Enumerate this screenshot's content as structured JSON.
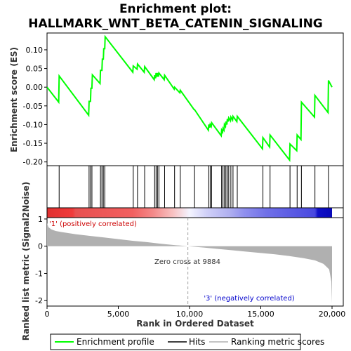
{
  "chart_data": {
    "type": "line",
    "title_lines": [
      "Enrichment plot:",
      "HALLMARK_WNT_BETA_CATENIN_SIGNALING"
    ],
    "xlabel": "Rank in Ordered Dataset",
    "ylabel_top": "Enrichment score (ES)",
    "ylabel_bottom": "Ranked list metric (Signal2Noise)",
    "xlim": [
      0,
      20000
    ],
    "x_ticks": [
      0,
      5000,
      10000,
      15000,
      20000
    ],
    "x_tick_labels": [
      "0",
      "5,000",
      "10,000",
      "15,000",
      "20,000"
    ],
    "es_ylim": [
      -0.21,
      0.145
    ],
    "es_ticks": [
      0.1,
      0.05,
      0.0,
      -0.05,
      -0.1,
      -0.15,
      -0.2
    ],
    "es_tick_labels": [
      "0.10",
      "0.05",
      "0.00",
      "-0.05",
      "-0.10",
      "-0.15",
      "-0.20"
    ],
    "metric_ylim": [
      -2.2,
      1.05
    ],
    "metric_ticks": [
      1,
      0,
      -1,
      -2
    ],
    "metric_tick_labels": [
      "1",
      "0",
      "-1",
      "-2"
    ],
    "hits": [
      850,
      2950,
      3050,
      3150,
      3750,
      3850,
      3950,
      4050,
      6050,
      6350,
      6850,
      7550,
      7650,
      7750,
      7850,
      8250,
      8950,
      9350,
      10350,
      11350,
      11450,
      11550,
      12250,
      12350,
      12450,
      12550,
      12650,
      12750,
      12900,
      13050,
      13350,
      15150,
      15650,
      17050,
      17550,
      17850,
      18800,
      19750
    ],
    "es_curve": [
      [
        0,
        0.0
      ],
      [
        820,
        -0.04
      ],
      [
        850,
        0.03
      ],
      [
        2920,
        -0.075
      ],
      [
        2950,
        -0.038
      ],
      [
        3050,
        -0.038
      ],
      [
        3080,
        -0.003
      ],
      [
        3150,
        -0.003
      ],
      [
        3180,
        0.033
      ],
      [
        3720,
        0.01
      ],
      [
        3750,
        0.045
      ],
      [
        3850,
        0.045
      ],
      [
        3880,
        0.075
      ],
      [
        3950,
        0.075
      ],
      [
        3980,
        0.103
      ],
      [
        4050,
        0.103
      ],
      [
        4080,
        0.135
      ],
      [
        6020,
        0.04
      ],
      [
        6050,
        0.057
      ],
      [
        6320,
        0.048
      ],
      [
        6350,
        0.062
      ],
      [
        6820,
        0.04
      ],
      [
        6850,
        0.055
      ],
      [
        7520,
        0.02
      ],
      [
        7550,
        0.032
      ],
      [
        7620,
        0.024
      ],
      [
        7650,
        0.038
      ],
      [
        7720,
        0.028
      ],
      [
        7750,
        0.038
      ],
      [
        7820,
        0.028
      ],
      [
        7850,
        0.038
      ],
      [
        8220,
        0.02
      ],
      [
        8250,
        0.032
      ],
      [
        8920,
        -0.005
      ],
      [
        8950,
        0.0
      ],
      [
        9320,
        -0.015
      ],
      [
        9350,
        -0.008
      ],
      [
        10320,
        -0.06
      ],
      [
        10350,
        -0.06
      ],
      [
        11320,
        -0.115
      ],
      [
        11350,
        -0.1
      ],
      [
        11420,
        -0.108
      ],
      [
        11450,
        -0.1
      ],
      [
        11520,
        -0.105
      ],
      [
        11550,
        -0.095
      ],
      [
        12220,
        -0.13
      ],
      [
        12250,
        -0.115
      ],
      [
        12320,
        -0.12
      ],
      [
        12350,
        -0.11
      ],
      [
        12420,
        -0.115
      ],
      [
        12450,
        -0.1
      ],
      [
        12520,
        -0.105
      ],
      [
        12550,
        -0.092
      ],
      [
        12620,
        -0.1
      ],
      [
        12650,
        -0.085
      ],
      [
        12720,
        -0.092
      ],
      [
        12750,
        -0.082
      ],
      [
        12870,
        -0.09
      ],
      [
        12900,
        -0.08
      ],
      [
        13020,
        -0.088
      ],
      [
        13050,
        -0.078
      ],
      [
        13320,
        -0.092
      ],
      [
        13350,
        -0.078
      ],
      [
        15120,
        -0.165
      ],
      [
        15150,
        -0.135
      ],
      [
        15620,
        -0.16
      ],
      [
        15650,
        -0.128
      ],
      [
        17020,
        -0.195
      ],
      [
        17050,
        -0.152
      ],
      [
        17520,
        -0.17
      ],
      [
        17550,
        -0.128
      ],
      [
        17820,
        -0.14
      ],
      [
        17850,
        -0.04
      ],
      [
        18770,
        -0.08
      ],
      [
        18800,
        -0.022
      ],
      [
        19720,
        -0.068
      ],
      [
        19750,
        0.018
      ],
      [
        20000,
        0.0
      ]
    ],
    "metric_curve": [
      [
        0,
        0.85
      ],
      [
        100,
        0.7
      ],
      [
        300,
        0.62
      ],
      [
        600,
        0.56
      ],
      [
        1000,
        0.52
      ],
      [
        2000,
        0.44
      ],
      [
        3000,
        0.38
      ],
      [
        4000,
        0.32
      ],
      [
        5000,
        0.26
      ],
      [
        6000,
        0.2
      ],
      [
        7000,
        0.15
      ],
      [
        8000,
        0.09
      ],
      [
        9000,
        0.04
      ],
      [
        9884,
        0.0
      ],
      [
        11000,
        -0.05
      ],
      [
        12000,
        -0.1
      ],
      [
        13000,
        -0.15
      ],
      [
        14000,
        -0.2
      ],
      [
        15000,
        -0.25
      ],
      [
        16000,
        -0.3
      ],
      [
        17000,
        -0.36
      ],
      [
        18000,
        -0.44
      ],
      [
        18800,
        -0.52
      ],
      [
        19400,
        -0.65
      ],
      [
        19800,
        -0.85
      ],
      [
        19950,
        -1.3
      ],
      [
        20000,
        -2.1
      ]
    ],
    "pos_label": "'1' (positively correlated)",
    "neg_label": "'3' (negatively correlated)",
    "zero_cross_label": "Zero cross at 9884",
    "zero_cross": 9884,
    "legend": [
      "Enrichment profile",
      "Hits",
      "Ranking metric scores"
    ],
    "colors": {
      "enrichment": "#00ff00",
      "hits": "#000000",
      "metric": "#b0b0b0",
      "pos": "#cc0000",
      "neg": "#0000cc"
    }
  }
}
